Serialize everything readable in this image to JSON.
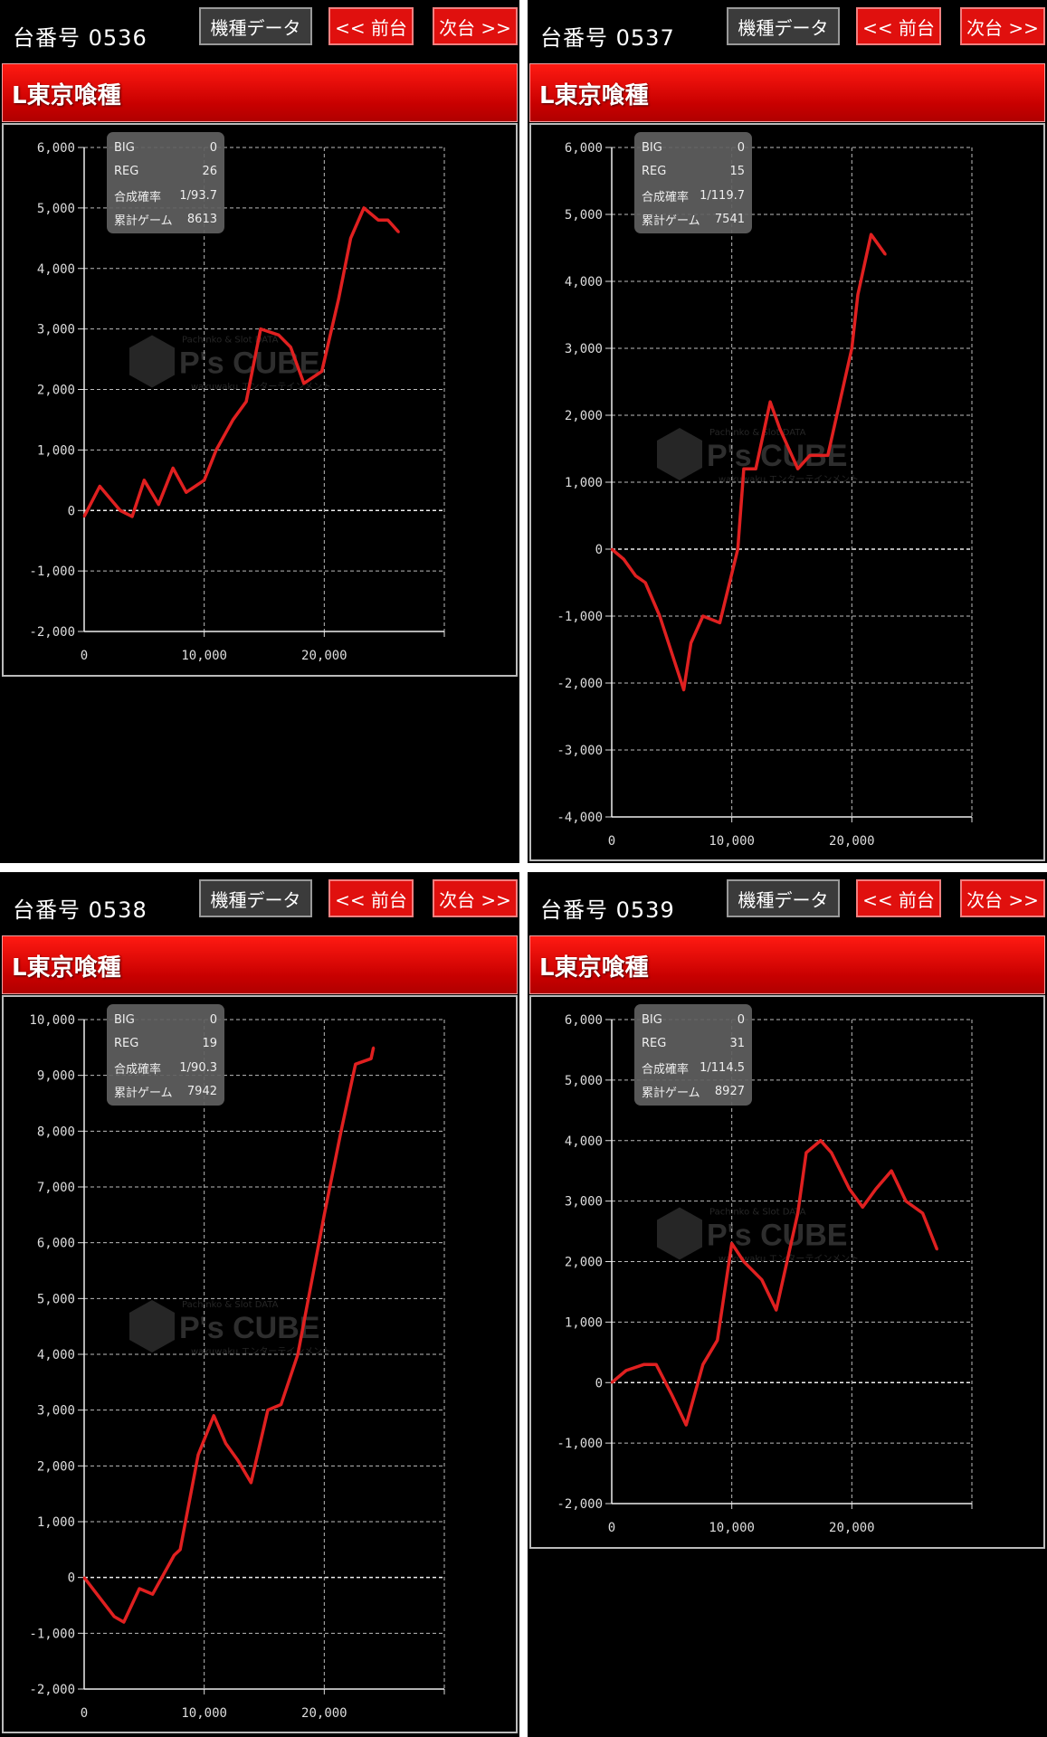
{
  "common": {
    "label_prefix": "台番号",
    "model_data_button": "機種データ",
    "prev_button": "<< 前台",
    "next_button": "次台 >>",
    "info_labels": {
      "big": "BIG",
      "reg": "REG",
      "combined_prob": "合成確率",
      "total_games": "累計ゲーム"
    },
    "watermark": {
      "brand": "P's CUBE",
      "top": "Pachinko & Slot DATA",
      "bottom": "wakuwaku エンターテインメント"
    },
    "colors": {
      "line": "#e02020",
      "title_bar": "#e00000",
      "button_red": "#e0100e",
      "info_bg": "#5f5f5f"
    }
  },
  "panels": [
    {
      "machine_number": "0536",
      "machine_name": "L東京喰種",
      "big": "0",
      "reg": "26",
      "combined_prob": "1/93.7",
      "total_games": "8613"
    },
    {
      "machine_number": "0537",
      "machine_name": "L東京喰種",
      "big": "0",
      "reg": "15",
      "combined_prob": "1/119.7",
      "total_games": "7541"
    },
    {
      "machine_number": "0538",
      "machine_name": "L東京喰種",
      "big": "0",
      "reg": "19",
      "combined_prob": "1/90.3",
      "total_games": "7942"
    },
    {
      "machine_number": "0539",
      "machine_name": "L東京喰種",
      "big": "0",
      "reg": "31",
      "combined_prob": "1/114.5",
      "total_games": "8927"
    }
  ],
  "chart_data": [
    {
      "type": "line",
      "xlim": [
        0,
        30000
      ],
      "ylim": [
        -2000,
        6000
      ],
      "x_ticks": [
        "0",
        "10,000",
        "20,000"
      ],
      "y_ticks": [
        "6,000",
        "5,000",
        "4,000",
        "3,000",
        "2,000",
        "1,000",
        "0",
        "-1,000",
        "-2,000"
      ],
      "grid": true,
      "x": [
        0,
        1300,
        3000,
        4000,
        5000,
        6200,
        7400,
        8500,
        10000,
        11000,
        12400,
        13500,
        14700,
        16200,
        17200,
        18300,
        19800,
        21200,
        22200,
        23300,
        24500,
        25300,
        26200
      ],
      "y": [
        -100,
        400,
        0,
        -100,
        500,
        100,
        700,
        300,
        500,
        1000,
        1500,
        1800,
        3000,
        2900,
        2700,
        2100,
        2300,
        3500,
        4500,
        5000,
        4800,
        4800,
        4600
      ]
    },
    {
      "type": "line",
      "xlim": [
        0,
        30000
      ],
      "ylim": [
        -4000,
        6000
      ],
      "x_ticks": [
        "0",
        "10,000",
        "20,000"
      ],
      "y_ticks": [
        "6,000",
        "5,000",
        "4,000",
        "3,000",
        "2,000",
        "1,000",
        "0",
        "-1,000",
        "-2,000",
        "-3,000",
        "-4,000"
      ],
      "grid": true,
      "x": [
        0,
        1000,
        2000,
        2800,
        4000,
        6000,
        6600,
        7600,
        9000,
        10500,
        11000,
        12000,
        13200,
        14000,
        15500,
        16500,
        18000,
        20000,
        20500,
        21600,
        22800
      ],
      "y": [
        0,
        -150,
        -400,
        -500,
        -1000,
        -2100,
        -1400,
        -1000,
        -1100,
        0,
        1200,
        1200,
        2200,
        1800,
        1200,
        1400,
        1400,
        3000,
        3800,
        4700,
        4400
      ]
    },
    {
      "type": "line",
      "xlim": [
        0,
        30000
      ],
      "ylim": [
        -2000,
        10000
      ],
      "x_ticks": [
        "0",
        "10,000",
        "20,000"
      ],
      "y_ticks": [
        "10,000",
        "9,000",
        "8,000",
        "7,000",
        "6,000",
        "5,000",
        "4,000",
        "3,000",
        "2,000",
        "1,000",
        "0",
        "-1,000",
        "-2,000"
      ],
      "grid": true,
      "x": [
        0,
        2500,
        3300,
        4600,
        5700,
        7500,
        8000,
        9500,
        10800,
        11800,
        12800,
        13900,
        15300,
        16400,
        17800,
        20000,
        21400,
        22600,
        23900,
        24100
      ],
      "y": [
        0,
        -700,
        -800,
        -200,
        -300,
        400,
        500,
        2200,
        2900,
        2400,
        2100,
        1700,
        3000,
        3100,
        4000,
        6500,
        8000,
        9200,
        9300,
        9500
      ]
    },
    {
      "type": "line",
      "xlim": [
        0,
        30000
      ],
      "ylim": [
        -2000,
        6000
      ],
      "x_ticks": [
        "0",
        "10,000",
        "20,000"
      ],
      "y_ticks": [
        "6,000",
        "5,000",
        "4,000",
        "3,000",
        "2,000",
        "1,000",
        "0",
        "-1,000",
        "-2,000"
      ],
      "grid": true,
      "x": [
        0,
        1200,
        2700,
        3700,
        5000,
        6200,
        7600,
        8800,
        10000,
        11000,
        12500,
        13700,
        15500,
        16200,
        17400,
        18300,
        19800,
        20900,
        22000,
        23300,
        24500,
        25900,
        27100
      ],
      "y": [
        0,
        200,
        300,
        300,
        -200,
        -700,
        300,
        700,
        2300,
        2000,
        1700,
        1200,
        2800,
        3800,
        4000,
        3800,
        3200,
        2900,
        3200,
        3500,
        3000,
        2800,
        2200
      ]
    }
  ]
}
